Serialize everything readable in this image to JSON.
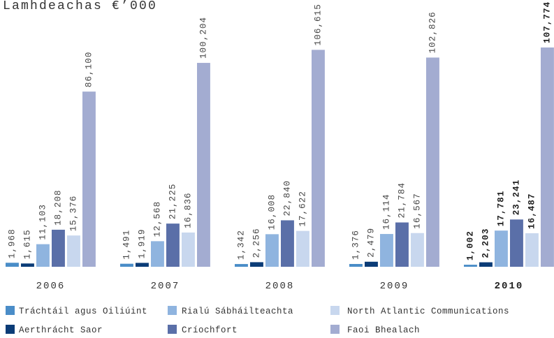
{
  "chart_data": {
    "type": "bar",
    "title": "Lamhdeachas €’000",
    "categories": [
      "2006",
      "2007",
      "2008",
      "2009",
      "2010"
    ],
    "bold_categories": [
      false,
      false,
      false,
      false,
      true
    ],
    "series": [
      {
        "name": "Tráchtáil agus Oiliúint",
        "color": "#4a8dc8",
        "values": [
          1968,
          1491,
          1342,
          1376,
          1002
        ]
      },
      {
        "name": "Aerthrácht Saor",
        "color": "#0b3c77",
        "values": [
          1615,
          1919,
          2256,
          2479,
          2203
        ]
      },
      {
        "name": "Rialú Sábháilteachta",
        "color": "#8fb4df",
        "values": [
          11103,
          12568,
          16008,
          16114,
          17781
        ]
      },
      {
        "name": "Críochfort",
        "color": "#5a6fa8",
        "values": [
          18208,
          21225,
          22840,
          21784,
          23241
        ]
      },
      {
        "name": "North Atlantic Communications",
        "color": "#c8d7ee",
        "values": [
          15376,
          16836,
          17622,
          16567,
          16487
        ]
      },
      {
        "name": "Faoi Bhealach",
        "color": "#a3acd1",
        "values": [
          86100,
          100204,
          106615,
          102826,
          107774
        ]
      }
    ],
    "grid": false,
    "legend": "bottom"
  }
}
